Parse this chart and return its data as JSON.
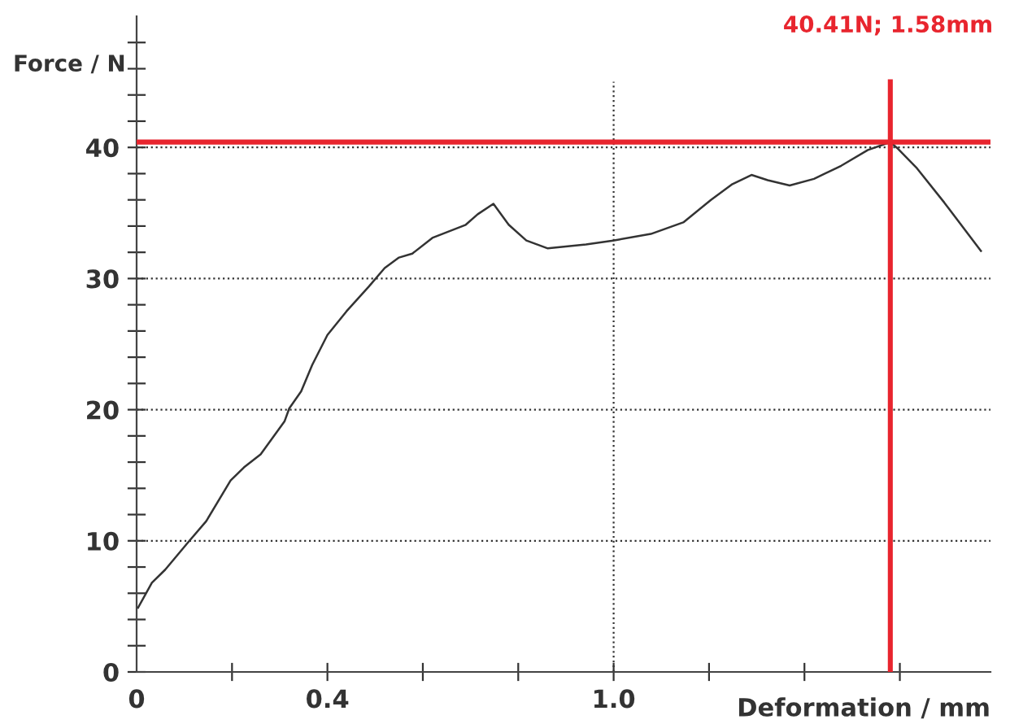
{
  "chart_data": {
    "type": "line",
    "xlabel": "Deformation / mm",
    "ylabel": "Force / N",
    "x": [
      0.003,
      0.032,
      0.06,
      0.106,
      0.146,
      0.197,
      0.225,
      0.26,
      0.31,
      0.32,
      0.345,
      0.368,
      0.4,
      0.44,
      0.487,
      0.52,
      0.55,
      0.578,
      0.62,
      0.69,
      0.715,
      0.748,
      0.78,
      0.817,
      0.862,
      0.942,
      0.999,
      1.078,
      1.147,
      1.204,
      1.249,
      1.289,
      1.323,
      1.369,
      1.42,
      1.477,
      1.533,
      1.58,
      1.596,
      1.636,
      1.693,
      1.77
    ],
    "series": [
      {
        "color": "#333333",
        "values": [
          4.9,
          6.8,
          7.8,
          9.8,
          11.5,
          14.6,
          15.6,
          16.6,
          19.1,
          20.1,
          21.4,
          23.4,
          25.7,
          27.5,
          29.4,
          30.8,
          31.6,
          31.9,
          33.1,
          34.1,
          34.9,
          35.7,
          34.1,
          32.9,
          32.3,
          32.6,
          32.9,
          33.4,
          34.3,
          36.0,
          37.2,
          37.9,
          37.5,
          37.1,
          37.6,
          38.6,
          39.8,
          40.4,
          39.9,
          38.4,
          35.8,
          32.1
        ]
      }
    ],
    "xlim": [
      0,
      1.79
    ],
    "ylim": [
      0,
      50
    ],
    "xticks": [
      0,
      {
        "value": 0.2,
        "label": null
      },
      0.4,
      {
        "value": 0.6,
        "label": null
      },
      {
        "value": 0.8,
        "label": null
      },
      {
        "value": 1.0,
        "label": "1.0"
      },
      {
        "value": 1.2,
        "label": null
      },
      {
        "value": 1.4,
        "label": null
      },
      {
        "value": 1.6,
        "label": null
      }
    ],
    "yticks": [
      0,
      {
        "value": 2,
        "label": null
      },
      {
        "value": 4,
        "label": null
      },
      {
        "value": 6,
        "label": null
      },
      {
        "value": 8,
        "label": null
      },
      10,
      {
        "value": 12,
        "label": null
      },
      {
        "value": 14,
        "label": null
      },
      {
        "value": 16,
        "label": null
      },
      {
        "value": 18,
        "label": null
      },
      20,
      {
        "value": 22,
        "label": null
      },
      {
        "value": 24,
        "label": null
      },
      {
        "value": 26,
        "label": null
      },
      {
        "value": 28,
        "label": null
      },
      30,
      {
        "value": 32,
        "label": null
      },
      {
        "value": 34,
        "label": null
      },
      {
        "value": 36,
        "label": null
      },
      {
        "value": 38,
        "label": null
      },
      40,
      {
        "value": 42,
        "label": null
      },
      {
        "value": 44,
        "label": null
      },
      {
        "value": 46,
        "label": null
      },
      {
        "value": 48,
        "label": null
      }
    ],
    "ref_lines": [
      {
        "axis": "y",
        "value": 10,
        "color": "#333333",
        "line_style": "dotted"
      },
      {
        "axis": "y",
        "value": 20,
        "color": "#333333",
        "line_style": "dotted"
      },
      {
        "axis": "y",
        "value": 30,
        "color": "#333333",
        "line_style": "dotted"
      },
      {
        "axis": "y",
        "value": 40,
        "color": "#333333",
        "line_style": "dotted"
      },
      {
        "axis": "x",
        "value": 1.0,
        "color": "#333333",
        "line_style": "dotted"
      },
      {
        "axis": "y",
        "value": 40.41,
        "color": "#e8252e",
        "line_style": "solid"
      },
      {
        "axis": "x",
        "value": 1.58,
        "color": "#e8252e",
        "line_style": "solid"
      }
    ],
    "annotations": [
      "40.41N; 1.58mm"
    ],
    "grid": false,
    "legend": false,
    "marker": "none",
    "line_style": "solid"
  }
}
